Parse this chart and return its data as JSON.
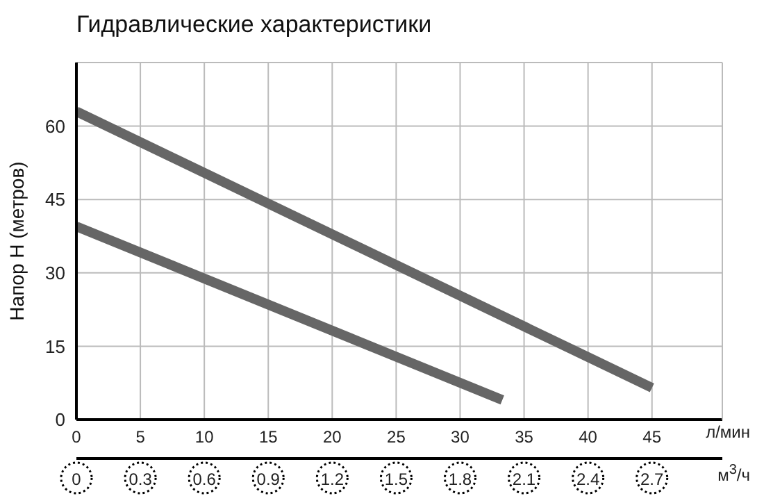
{
  "chart_data": {
    "type": "line",
    "title": "Гидравлические характеристики",
    "xlabel": "л/мин",
    "ylabel": "Напор Н (метров)",
    "x2label": "м$^{3}$/ч",
    "xlim": [
      0,
      50.5
    ],
    "xticks": [
      0,
      5,
      10,
      15,
      20,
      25,
      30,
      35,
      40,
      45
    ],
    "x2lim": [
      0,
      3.03
    ],
    "x2ticks": [
      0,
      0.3,
      0.6,
      0.9,
      1.2,
      1.5,
      1.8,
      2.1,
      2.4,
      2.7
    ],
    "ylim": [
      0,
      73
    ],
    "yticks": [
      0,
      15,
      30,
      45,
      60
    ],
    "grid": true,
    "marker": "none",
    "line_style": "solid",
    "series": [
      {
        "color": "#666666",
        "x": [
          0,
          45
        ],
        "values": [
          63,
          6.5
        ]
      },
      {
        "color": "#666666",
        "x": [
          0,
          33.3
        ],
        "values": [
          39.5,
          4
        ]
      }
    ]
  }
}
